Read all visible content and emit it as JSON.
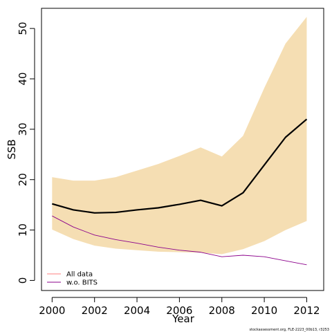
{
  "chart_data": {
    "type": "line",
    "xlabel": "Year",
    "ylabel": "SSB",
    "xlim": [
      1999.5,
      2012.8
    ],
    "ylim": [
      -2,
      54
    ],
    "xticks": [
      2000,
      2002,
      2004,
      2006,
      2008,
      2010,
      2012
    ],
    "yticks": [
      0,
      10,
      20,
      30,
      40,
      50
    ],
    "x": [
      2000,
      2001,
      2002,
      2003,
      2004,
      2005,
      2006,
      2007,
      2008,
      2009,
      2010,
      2011,
      2012
    ],
    "band": {
      "color": "#f5deb3",
      "upper": [
        20.5,
        19.8,
        19.8,
        20.5,
        21.8,
        23.1,
        24.7,
        26.4,
        24.6,
        28.7,
        38.2,
        47.0,
        52.3
      ],
      "lower": [
        10.1,
        8.2,
        6.9,
        6.3,
        6.0,
        5.7,
        5.6,
        5.5,
        5.2,
        6.2,
        7.8,
        10.0,
        11.8
      ]
    },
    "series": [
      {
        "name": "All data",
        "color": "#000000",
        "width": 2.2,
        "values": [
          15.2,
          14.0,
          13.4,
          13.5,
          14.0,
          14.4,
          15.1,
          15.9,
          14.8,
          17.4,
          22.9,
          28.4,
          32.0
        ]
      },
      {
        "name": "w.o. BITS",
        "color": "#8b008b",
        "width": 0.9,
        "values": [
          12.8,
          10.6,
          9.0,
          8.1,
          7.4,
          6.6,
          6.0,
          5.6,
          4.7,
          5.0,
          4.7,
          3.9,
          3.1
        ]
      }
    ],
    "legend": {
      "placement": "bottom-left",
      "entries": [
        {
          "label": "All data",
          "color": "#ff7f7f"
        },
        {
          "label": "w.o. BITS",
          "color": "#8b008b"
        }
      ]
    }
  },
  "footnote": "stockassessment.org, FLE-2223_00b13, r3253"
}
